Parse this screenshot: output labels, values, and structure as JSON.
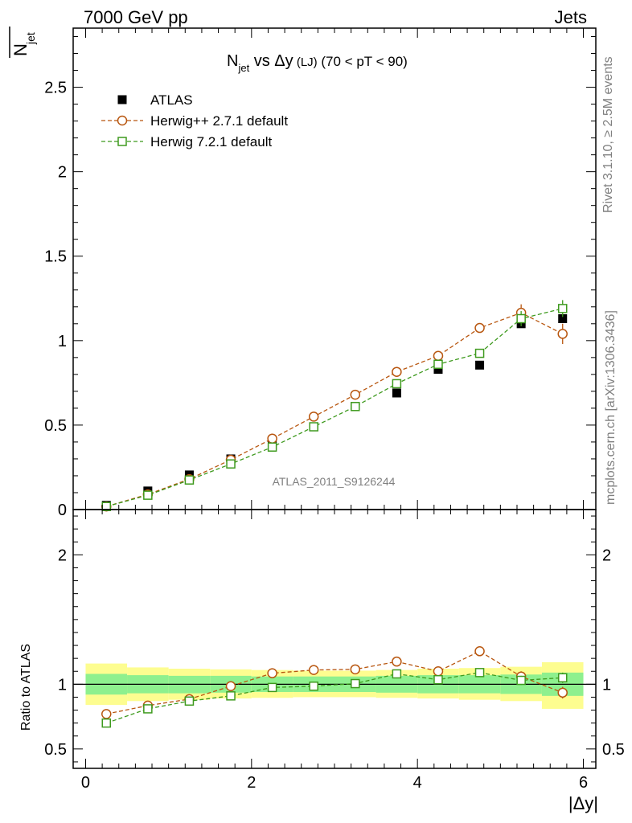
{
  "header": {
    "left": "7000 GeV pp",
    "right": "Jets"
  },
  "side_labels": {
    "rivet": "Rivet 3.1.10, ≥ 2.5M events",
    "mcplots": "mcplots.cern.ch [arXiv:1306.3436]"
  },
  "chart_data": [
    {
      "type": "scatter",
      "title": {
        "main": "N",
        "main_sub": "jet",
        "mid": " vs Δy",
        "small": " (LJ)",
        "tail": " (70 < pT <  90)"
      },
      "ylabel": {
        "main": "N",
        "sub": "jet"
      },
      "xlim": [
        -0.15,
        6.15
      ],
      "ylim": [
        0,
        2.85
      ],
      "yticks": [
        0,
        0.5,
        1,
        1.5,
        2,
        2.5
      ],
      "ytick_labels": [
        "0",
        "0.5",
        "1",
        "1.5",
        "2",
        "2.5"
      ],
      "watermark": "ATLAS_2011_S9126244",
      "legend_position": "top-left",
      "x": [
        0.25,
        0.75,
        1.25,
        1.75,
        2.25,
        2.75,
        3.25,
        3.75,
        4.25,
        4.75,
        5.25,
        5.75
      ],
      "xerr": 0.25,
      "series": [
        {
          "name": "ATLAS",
          "color": "#000000",
          "marker": "filled-square",
          "values": [
            0.025,
            0.11,
            0.205,
            0.3,
            0.38,
            0.49,
            0.61,
            0.69,
            0.83,
            0.855,
            1.1,
            1.13
          ]
        },
        {
          "name": "Herwig++ 2.7.1 default",
          "color": "#b8560f",
          "marker": "open-circle",
          "line": "dashed",
          "values": [
            0.018,
            0.09,
            0.18,
            0.295,
            0.42,
            0.55,
            0.68,
            0.815,
            0.91,
            1.075,
            1.165,
            1.04
          ],
          "errors": [
            0.005,
            0.006,
            0.008,
            0.01,
            0.012,
            0.014,
            0.016,
            0.018,
            0.02,
            0.025,
            0.05,
            0.06
          ]
        },
        {
          "name": "Herwig 7.2.1 default",
          "color": "#3e9a1e",
          "marker": "open-square",
          "line": "dashed",
          "values": [
            0.018,
            0.085,
            0.175,
            0.27,
            0.37,
            0.49,
            0.61,
            0.745,
            0.86,
            0.925,
            1.13,
            1.19
          ],
          "errors": [
            0.005,
            0.006,
            0.008,
            0.01,
            0.012,
            0.014,
            0.016,
            0.018,
            0.02,
            0.025,
            0.045,
            0.05
          ]
        }
      ]
    },
    {
      "type": "scatter",
      "ylabel": "Ratio to ATLAS",
      "xlabel": "|Δy|",
      "xlim": [
        -0.15,
        6.15
      ],
      "ylim": [
        0.35,
        2.35
      ],
      "xticks": [
        0,
        2,
        4,
        6
      ],
      "xtick_labels": [
        "0",
        "2",
        "4",
        "6"
      ],
      "yticks": [
        0.5,
        1,
        2
      ],
      "ytick_labels": [
        "0.5",
        "1",
        "2"
      ],
      "x": [
        0.25,
        0.75,
        1.25,
        1.75,
        2.25,
        2.75,
        3.25,
        3.75,
        4.25,
        4.75,
        5.25,
        5.75
      ],
      "bin_edges": [
        0,
        0.5,
        1,
        1.5,
        2,
        2.5,
        3,
        3.5,
        4,
        4.5,
        5,
        5.5,
        6
      ],
      "band_inner": {
        "color": "#8ef08e",
        "low": [
          0.92,
          0.93,
          0.93,
          0.935,
          0.94,
          0.94,
          0.94,
          0.935,
          0.93,
          0.93,
          0.925,
          0.91
        ],
        "high": [
          1.08,
          1.07,
          1.065,
          1.065,
          1.06,
          1.06,
          1.06,
          1.065,
          1.07,
          1.07,
          1.075,
          1.09
        ]
      },
      "band_outer": {
        "color": "#fdfd90",
        "low": [
          0.84,
          0.87,
          0.88,
          0.89,
          0.895,
          0.9,
          0.9,
          0.895,
          0.89,
          0.88,
          0.87,
          0.81
        ],
        "high": [
          1.16,
          1.13,
          1.12,
          1.115,
          1.11,
          1.105,
          1.105,
          1.11,
          1.12,
          1.125,
          1.135,
          1.17
        ]
      },
      "reference_line": 1,
      "series": [
        {
          "name": "Herwig++ 2.7.1 default",
          "color": "#b8560f",
          "marker": "open-circle",
          "line": "dashed",
          "values": [
            0.77,
            0.835,
            0.885,
            0.985,
            1.085,
            1.11,
            1.115,
            1.175,
            1.1,
            1.255,
            1.06,
            0.935
          ],
          "errors": [
            0.015,
            0.01,
            0.01,
            0.01,
            0.01,
            0.01,
            0.01,
            0.012,
            0.012,
            0.015,
            0.04,
            0.045
          ]
        },
        {
          "name": "Herwig 7.2.1 default",
          "color": "#3e9a1e",
          "marker": "open-square",
          "line": "dashed",
          "values": [
            0.7,
            0.81,
            0.87,
            0.91,
            0.975,
            0.985,
            1.005,
            1.08,
            1.035,
            1.09,
            1.03,
            1.05
          ],
          "errors": [
            0.015,
            0.01,
            0.01,
            0.01,
            0.01,
            0.01,
            0.01,
            0.012,
            0.012,
            0.015,
            0.035,
            0.04
          ]
        }
      ]
    }
  ]
}
